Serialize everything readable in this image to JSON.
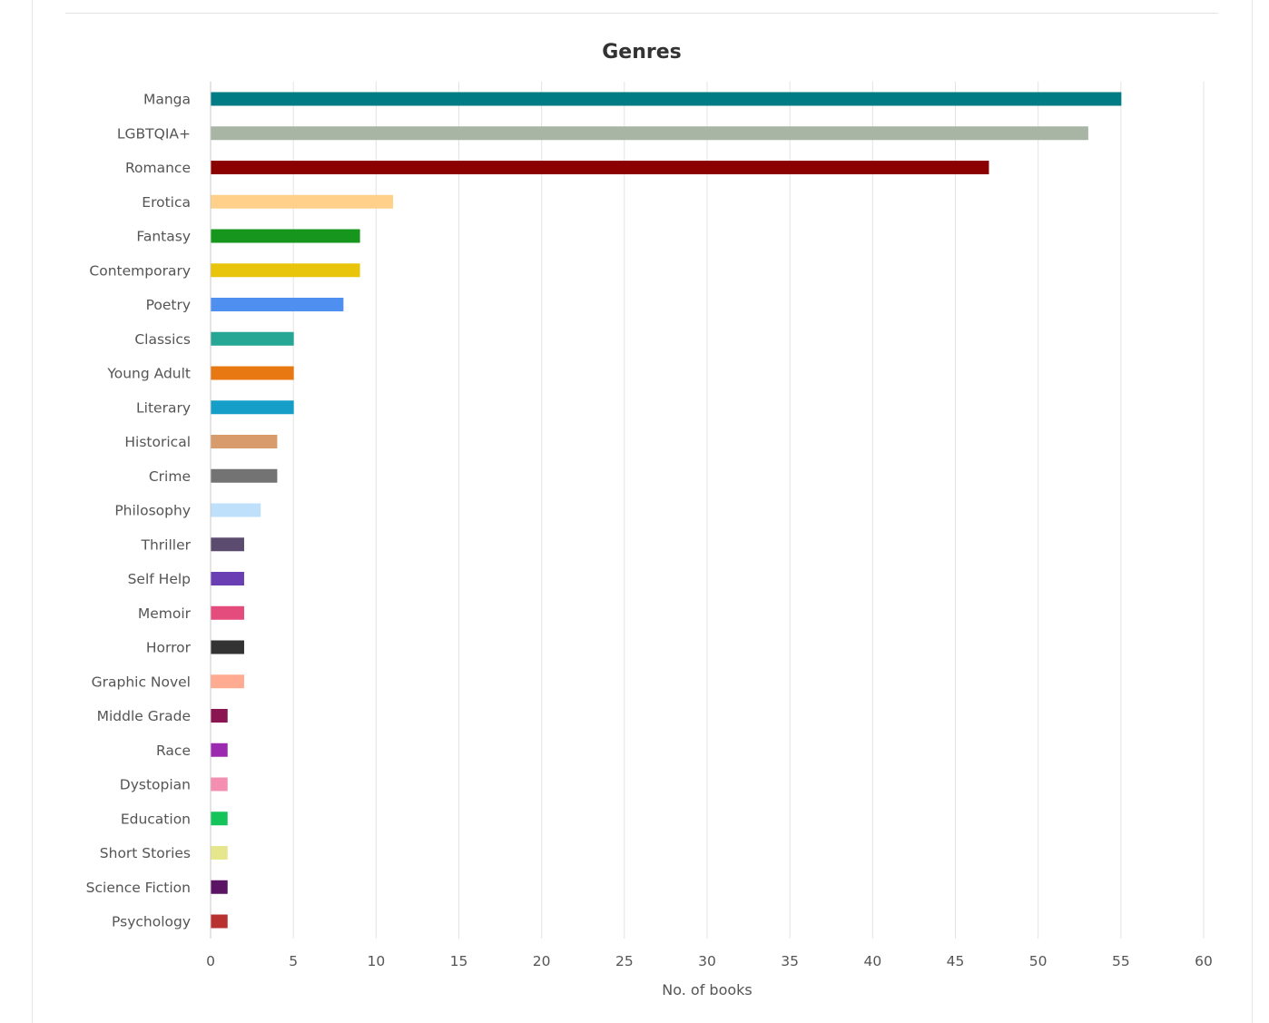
{
  "chart_data": {
    "type": "bar",
    "orientation": "horizontal",
    "title": "Genres",
    "xlabel": "No. of books",
    "ylabel": "",
    "xlim": [
      0,
      60
    ],
    "xticks": [
      "0",
      "5",
      "10",
      "15",
      "20",
      "25",
      "30",
      "35",
      "40",
      "45",
      "50",
      "55",
      "60"
    ],
    "grid": true,
    "legend": "none",
    "categories": [
      "Manga",
      "LGBTQIA+",
      "Romance",
      "Erotica",
      "Fantasy",
      "Contemporary",
      "Poetry",
      "Classics",
      "Young Adult",
      "Literary",
      "Historical",
      "Crime",
      "Philosophy",
      "Thriller",
      "Self Help",
      "Memoir",
      "Horror",
      "Graphic Novel",
      "Middle Grade",
      "Race",
      "Dystopian",
      "Education",
      "Short Stories",
      "Science Fiction",
      "Psychology"
    ],
    "values": [
      55,
      53,
      47,
      11,
      9,
      9,
      8,
      5,
      5,
      5,
      4,
      4,
      3,
      2,
      2,
      2,
      2,
      2,
      1,
      1,
      1,
      1,
      1,
      1,
      1
    ],
    "colors": [
      "#007c84",
      "#a8b5a4",
      "#8b0000",
      "#ffd089",
      "#16961c",
      "#e8c50a",
      "#4f8ff0",
      "#26a694",
      "#e87812",
      "#159ec7",
      "#d89b6b",
      "#737373",
      "#bfe0fa",
      "#5b4b6e",
      "#6b3fb4",
      "#e34c7c",
      "#333333",
      "#ffab91",
      "#8a1550",
      "#9c2ab1",
      "#f48fb1",
      "#14c45a",
      "#e6e68c",
      "#5a1463",
      "#b83232"
    ]
  }
}
